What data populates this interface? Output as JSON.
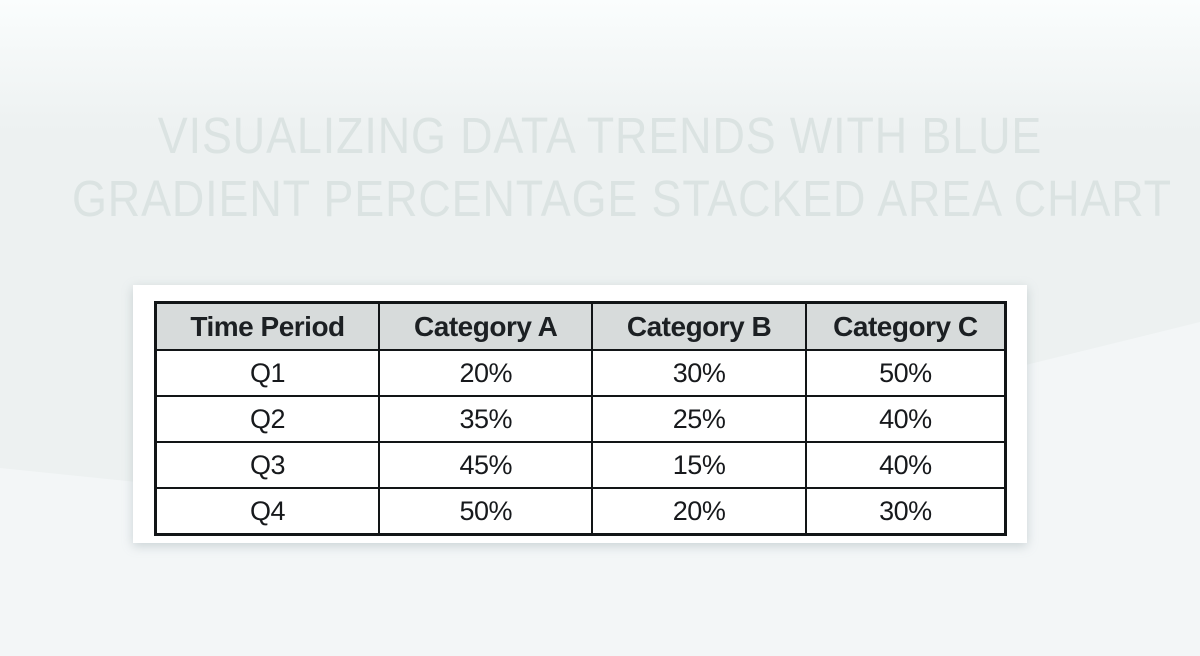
{
  "page": {
    "title_line1": "VISUALIZING DATA TRENDS WITH BLUE",
    "title_line2": "GRADIENT PERCENTAGE STACKED AREA CHART"
  },
  "colors": {
    "background_top": "#fafdfd",
    "background_base": "#edf1f1",
    "background_wedge": "#f3f6f7",
    "title_text": "#dbe3e2",
    "card_background": "#ffffff",
    "table_border": "#121517",
    "table_header_background": "#d7dbdb",
    "table_header_text": "#1c2023",
    "table_body_text": "#17191c"
  },
  "chart_data": {
    "type": "table",
    "title": "VISUALIZING DATA TRENDS WITH BLUE GRADIENT PERCENTAGE STACKED AREA CHART",
    "columns": [
      "Time Period",
      "Category A",
      "Category B",
      "Category C"
    ],
    "rows": [
      [
        "Q1",
        "20%",
        "30%",
        "50%"
      ],
      [
        "Q2",
        "35%",
        "25%",
        "40%"
      ],
      [
        "Q3",
        "45%",
        "15%",
        "40%"
      ],
      [
        "Q4",
        "50%",
        "20%",
        "30%"
      ]
    ],
    "series": [
      {
        "name": "Category A",
        "values": [
          20,
          35,
          45,
          50
        ]
      },
      {
        "name": "Category B",
        "values": [
          30,
          25,
          15,
          20
        ]
      },
      {
        "name": "Category C",
        "values": [
          50,
          40,
          40,
          30
        ]
      }
    ],
    "categories": [
      "Q1",
      "Q2",
      "Q3",
      "Q4"
    ],
    "value_unit": "%"
  }
}
